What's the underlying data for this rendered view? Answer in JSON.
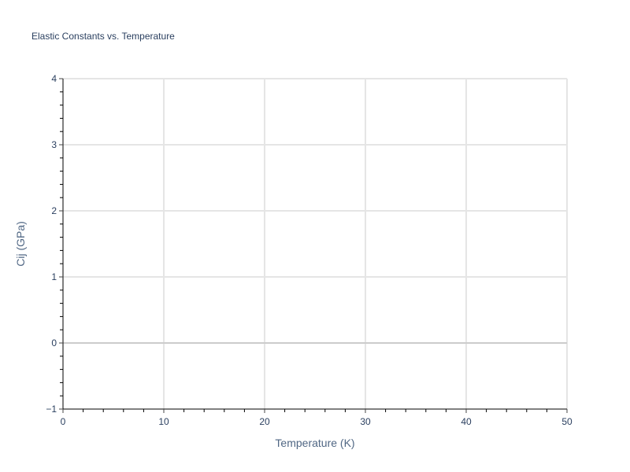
{
  "chart_data": {
    "type": "line",
    "title": "Elastic Constants vs. Temperature",
    "xlabel": "Temperature (K)",
    "ylabel": "Cij (GPa)",
    "xlim": [
      0,
      50
    ],
    "ylim": [
      -1,
      4
    ],
    "x_ticks": [
      "0",
      "10",
      "20",
      "30",
      "40",
      "50"
    ],
    "y_ticks": [
      "−1",
      "0",
      "1",
      "2",
      "3",
      "4"
    ],
    "grid": true,
    "series": [],
    "colors": {
      "text": "#2a3f5f",
      "grid": "#e5e5e5",
      "zeroline": "#cccccc",
      "axis": "#000000"
    }
  }
}
